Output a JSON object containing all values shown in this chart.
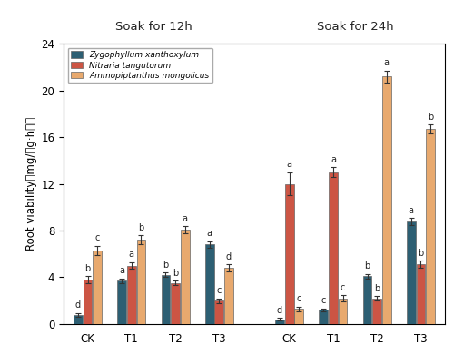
{
  "title_left": "Soak for 12h",
  "title_right": "Soak for 24h",
  "species": [
    "Zygophyllum xanthoxylum",
    "Nitraria tangutorum",
    "Ammopiptanthus mongolicus"
  ],
  "colors": [
    "#2d5f73",
    "#cc5544",
    "#e8a96e"
  ],
  "bar_values": {
    "12h": {
      "CK": [
        0.8,
        3.8,
        6.3
      ],
      "T1": [
        3.7,
        5.0,
        7.2
      ],
      "T2": [
        4.2,
        3.5,
        8.1
      ],
      "T3": [
        6.8,
        2.0,
        4.8
      ]
    },
    "24h": {
      "CK": [
        0.4,
        12.0,
        1.3
      ],
      "T1": [
        1.2,
        13.0,
        2.2
      ],
      "T2": [
        4.1,
        2.2,
        21.2
      ],
      "T3": [
        8.8,
        5.1,
        16.7
      ]
    }
  },
  "errors": {
    "12h": {
      "CK": [
        0.15,
        0.3,
        0.4
      ],
      "T1": [
        0.2,
        0.3,
        0.4
      ],
      "T2": [
        0.2,
        0.2,
        0.3
      ],
      "T3": [
        0.3,
        0.2,
        0.3
      ]
    },
    "24h": {
      "CK": [
        0.1,
        1.0,
        0.2
      ],
      "T1": [
        0.15,
        0.4,
        0.3
      ],
      "T2": [
        0.2,
        0.2,
        0.5
      ],
      "T3": [
        0.3,
        0.3,
        0.4
      ]
    }
  },
  "sig_labels": {
    "12h": {
      "CK": [
        "d",
        "b",
        "c"
      ],
      "T1": [
        "a",
        "a",
        "b"
      ],
      "T2": [
        "b",
        "b",
        "a"
      ],
      "T3": [
        "a",
        "c",
        "d"
      ]
    },
    "24h": {
      "CK": [
        "d",
        "a",
        "c"
      ],
      "T1": [
        "c",
        "a",
        "c"
      ],
      "T2": [
        "b",
        "b",
        "a"
      ],
      "T3": [
        "a",
        "b",
        "b"
      ]
    }
  },
  "ylim": [
    0,
    24
  ],
  "yticks": [
    0,
    4,
    8,
    12,
    16,
    20,
    24
  ],
  "background_color": "#ffffff",
  "edgecolor": "#666666",
  "ylabel": "Root viability（mg/（g·h））"
}
